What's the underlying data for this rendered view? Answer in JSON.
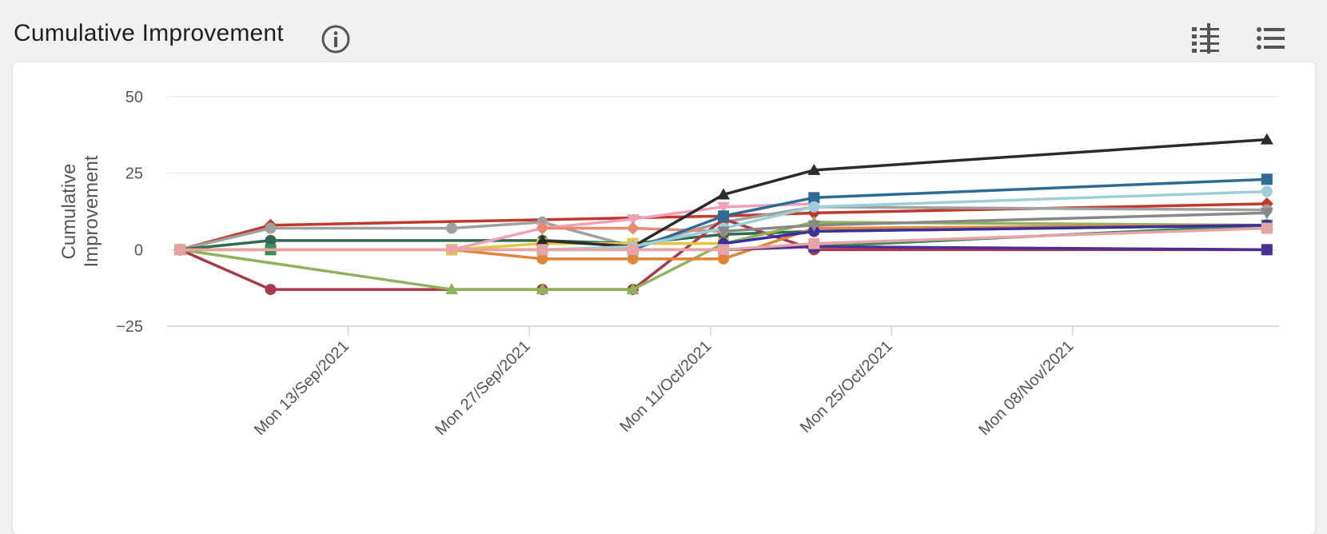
{
  "header": {
    "title": "Cumulative Improvement",
    "info_icon": "info-circle-icon",
    "toolbar": [
      {
        "icon": "column-filter-icon"
      },
      {
        "icon": "list-icon"
      }
    ]
  },
  "chart_data": {
    "type": "line",
    "title": "",
    "ylabel": [
      "Cumulative",
      "Improvement"
    ],
    "xlabel": "",
    "ylim": [
      -25,
      50
    ],
    "yticks": [
      -25,
      0,
      25,
      50
    ],
    "xlim": [
      "2021-08-30",
      "2021-11-24"
    ],
    "xticks": [
      {
        "date": "2021-09-13",
        "label": "Mon 13/Sep/2021"
      },
      {
        "date": "2021-09-27",
        "label": "Mon 27/Sep/2021"
      },
      {
        "date": "2021-10-11",
        "label": "Mon 11/Oct/2021"
      },
      {
        "date": "2021-10-25",
        "label": "Mon 25/Oct/2021"
      },
      {
        "date": "2021-11-08",
        "label": "Mon 08/Nov/2021"
      }
    ],
    "grid": true,
    "series": [
      {
        "color": "#c1392b",
        "marker": "diamond",
        "points": [
          [
            "2021-08-31",
            0
          ],
          [
            "2021-09-07",
            8
          ],
          [
            "2021-10-12",
            11
          ],
          [
            "2021-10-19",
            12
          ],
          [
            "2021-11-23",
            15
          ]
        ]
      },
      {
        "color": "#a0a0a0",
        "marker": "circle",
        "points": [
          [
            "2021-08-31",
            0
          ],
          [
            "2021-09-07",
            7
          ],
          [
            "2021-09-21",
            7
          ],
          [
            "2021-09-28",
            9
          ],
          [
            "2021-10-05",
            1
          ],
          [
            "2021-10-12",
            9
          ],
          [
            "2021-10-19",
            14
          ],
          [
            "2021-11-23",
            13
          ]
        ]
      },
      {
        "color": "#2e6b4f",
        "marker": "circle",
        "points": [
          [
            "2021-08-31",
            0
          ],
          [
            "2021-09-07",
            3
          ],
          [
            "2021-09-28",
            3
          ],
          [
            "2021-10-05",
            2
          ],
          [
            "2021-10-12",
            5
          ],
          [
            "2021-10-19",
            6
          ],
          [
            "2021-11-23",
            8
          ]
        ]
      },
      {
        "color": "#3d8a5a",
        "marker": "square",
        "points": [
          [
            "2021-08-31",
            0
          ],
          [
            "2021-09-07",
            0
          ],
          [
            "2021-09-21",
            0
          ],
          [
            "2021-09-28",
            0
          ],
          [
            "2021-10-05",
            0
          ],
          [
            "2021-10-12",
            0
          ],
          [
            "2021-10-19",
            1
          ],
          [
            "2021-11-23",
            8
          ]
        ]
      },
      {
        "color": "#a8384a",
        "marker": "circle",
        "points": [
          [
            "2021-08-31",
            0
          ],
          [
            "2021-09-07",
            -13
          ],
          [
            "2021-09-28",
            -13
          ],
          [
            "2021-10-05",
            -13
          ],
          [
            "2021-10-12",
            10
          ],
          [
            "2021-10-19",
            0
          ],
          [
            "2021-11-23",
            0
          ]
        ]
      },
      {
        "color": "#8fb35a",
        "marker": "triangle",
        "points": [
          [
            "2021-08-31",
            0
          ],
          [
            "2021-09-21",
            -13
          ],
          [
            "2021-09-28",
            -13
          ],
          [
            "2021-10-05",
            -13
          ],
          [
            "2021-10-12",
            2
          ],
          [
            "2021-10-19",
            9
          ],
          [
            "2021-11-23",
            8
          ]
        ]
      },
      {
        "color": "#e0853a",
        "marker": "circle",
        "points": [
          [
            "2021-08-31",
            0
          ],
          [
            "2021-09-21",
            0
          ],
          [
            "2021-09-28",
            -3
          ],
          [
            "2021-10-05",
            -3
          ],
          [
            "2021-10-12",
            -3
          ],
          [
            "2021-10-19",
            7
          ],
          [
            "2021-11-23",
            8
          ]
        ]
      },
      {
        "color": "#e8c540",
        "marker": "square",
        "points": [
          [
            "2021-09-21",
            0
          ],
          [
            "2021-09-28",
            2
          ],
          [
            "2021-10-05",
            2
          ],
          [
            "2021-10-12",
            2
          ]
        ]
      },
      {
        "color": "#f0a0b8",
        "marker": "triangle-down",
        "points": [
          [
            "2021-09-21",
            0
          ],
          [
            "2021-09-28",
            7
          ],
          [
            "2021-10-05",
            10
          ],
          [
            "2021-10-12",
            14
          ],
          [
            "2021-10-19",
            15
          ]
        ]
      },
      {
        "color": "#e88a70",
        "marker": "diamond",
        "points": [
          [
            "2021-09-28",
            7
          ],
          [
            "2021-10-05",
            7
          ],
          [
            "2021-10-12",
            6
          ]
        ]
      },
      {
        "color": "#2b2b2b",
        "marker": "triangle",
        "points": [
          [
            "2021-09-28",
            3
          ],
          [
            "2021-10-05",
            1
          ],
          [
            "2021-10-12",
            18
          ],
          [
            "2021-10-19",
            26
          ],
          [
            "2021-11-23",
            36
          ]
        ]
      },
      {
        "color": "#2e6a96",
        "marker": "square",
        "points": [
          [
            "2021-10-05",
            0
          ],
          [
            "2021-10-12",
            11
          ],
          [
            "2021-10-19",
            17
          ],
          [
            "2021-11-23",
            23
          ]
        ]
      },
      {
        "color": "#9ccfd8",
        "marker": "circle",
        "points": [
          [
            "2021-09-28",
            0
          ],
          [
            "2021-10-05",
            1
          ],
          [
            "2021-10-12",
            7
          ],
          [
            "2021-10-19",
            14
          ],
          [
            "2021-11-23",
            19
          ]
        ]
      },
      {
        "color": "#4a3094",
        "marker": "square",
        "points": [
          [
            "2021-10-12",
            0
          ],
          [
            "2021-10-19",
            1
          ],
          [
            "2021-11-23",
            0
          ]
        ]
      },
      {
        "color": "#3b2fa0",
        "marker": "circle",
        "points": [
          [
            "2021-10-12",
            2
          ],
          [
            "2021-10-19",
            6
          ],
          [
            "2021-11-23",
            8
          ]
        ]
      },
      {
        "color": "#888888",
        "marker": "triangle-down",
        "points": [
          [
            "2021-10-12",
            6
          ],
          [
            "2021-10-19",
            8
          ],
          [
            "2021-11-23",
            12
          ]
        ]
      },
      {
        "color": "#e8a4a4",
        "marker": "square",
        "points": [
          [
            "2021-08-31",
            0
          ],
          [
            "2021-09-28",
            0
          ],
          [
            "2021-10-05",
            0
          ],
          [
            "2021-10-12",
            0
          ],
          [
            "2021-10-19",
            2
          ],
          [
            "2021-11-23",
            7
          ]
        ]
      }
    ]
  }
}
